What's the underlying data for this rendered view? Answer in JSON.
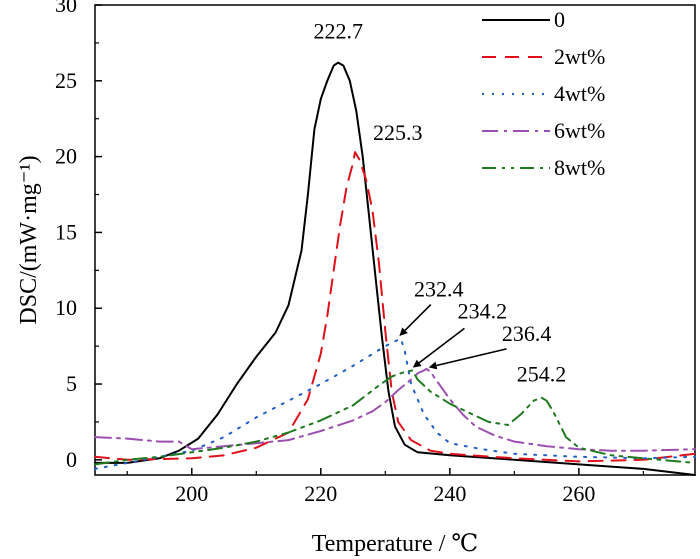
{
  "chart_data": {
    "type": "line",
    "xlabel": "Temperature / ℃",
    "ylabel": "DSC/(mW·mg⁻¹)",
    "xlim": [
      185,
      278
    ],
    "ylim": [
      -1,
      30
    ],
    "xticks": [
      200,
      220,
      240,
      260
    ],
    "yticks": [
      0,
      5,
      10,
      15,
      20,
      25,
      30
    ],
    "grid": false,
    "legend_position": "top-right",
    "series": [
      {
        "name": "0",
        "color": "#000000",
        "dash": "solid",
        "points": [
          [
            185,
            -0.2
          ],
          [
            190,
            -0.2
          ],
          [
            195,
            0.1
          ],
          [
            198,
            0.6
          ],
          [
            201,
            1.4
          ],
          [
            204,
            3.0
          ],
          [
            207,
            5.0
          ],
          [
            210,
            6.8
          ],
          [
            213,
            8.4
          ],
          [
            215,
            10.2
          ],
          [
            217,
            13.8
          ],
          [
            218,
            17.5
          ],
          [
            219,
            21.8
          ],
          [
            220,
            23.8
          ],
          [
            221,
            25.0
          ],
          [
            222,
            26.0
          ],
          [
            222.7,
            26.2
          ],
          [
            223.5,
            26.0
          ],
          [
            224.5,
            25.0
          ],
          [
            225.5,
            23.0
          ],
          [
            226.5,
            20.0
          ],
          [
            227.5,
            16.0
          ],
          [
            228.5,
            12.0
          ],
          [
            229.5,
            8.0
          ],
          [
            230.5,
            4.5
          ],
          [
            231.5,
            2.2
          ],
          [
            233,
            1.0
          ],
          [
            235,
            0.5
          ],
          [
            240,
            0.3
          ],
          [
            250,
            0
          ],
          [
            260,
            -0.3
          ],
          [
            270,
            -0.6
          ],
          [
            278,
            -1.0
          ]
        ]
      },
      {
        "name": "2wt%",
        "color": "#e0101a",
        "dash": "14,9",
        "points": [
          [
            185,
            0.2
          ],
          [
            190,
            0
          ],
          [
            200,
            0.1
          ],
          [
            205,
            0.3
          ],
          [
            210,
            0.8
          ],
          [
            215,
            1.8
          ],
          [
            218,
            4.0
          ],
          [
            220,
            7.0
          ],
          [
            221,
            9.5
          ],
          [
            222,
            12.5
          ],
          [
            223,
            15.5
          ],
          [
            224,
            18.0
          ],
          [
            225,
            19.6
          ],
          [
            225.3,
            20.3
          ],
          [
            226,
            19.8
          ],
          [
            227,
            18.5
          ],
          [
            228,
            16.5
          ],
          [
            229,
            13.0
          ],
          [
            230,
            8.5
          ],
          [
            231,
            4.5
          ],
          [
            232,
            2.5
          ],
          [
            234,
            1.3
          ],
          [
            237,
            0.6
          ],
          [
            240,
            0.4
          ],
          [
            250,
            0.1
          ],
          [
            260,
            -0.1
          ],
          [
            270,
            0
          ],
          [
            278,
            0.4
          ]
        ]
      },
      {
        "name": "4wt%",
        "color": "#1f5fc8",
        "dash": "2,8",
        "points": [
          [
            185,
            -0.6
          ],
          [
            190,
            -0.2
          ],
          [
            195,
            0.2
          ],
          [
            200,
            0.6
          ],
          [
            205,
            1.5
          ],
          [
            210,
            2.8
          ],
          [
            215,
            3.9
          ],
          [
            220,
            5.0
          ],
          [
            225,
            6.2
          ],
          [
            230,
            7.5
          ],
          [
            232.4,
            8.0
          ],
          [
            233,
            7.2
          ],
          [
            234,
            5.0
          ],
          [
            236,
            3.0
          ],
          [
            238,
            1.8
          ],
          [
            240,
            1.1
          ],
          [
            245,
            0.7
          ],
          [
            250,
            0.4
          ],
          [
            260,
            0.2
          ],
          [
            270,
            0.1
          ],
          [
            278,
            0.2
          ]
        ]
      },
      {
        "name": "6wt%",
        "color": "#9b4fb0",
        "dash": "16,6,3,6",
        "points": [
          [
            185,
            1.5
          ],
          [
            190,
            1.4
          ],
          [
            195,
            1.2
          ],
          [
            198,
            1.2
          ],
          [
            200,
            0.7
          ],
          [
            205,
            0.9
          ],
          [
            210,
            1.1
          ],
          [
            215,
            1.3
          ],
          [
            220,
            1.9
          ],
          [
            225,
            2.6
          ],
          [
            228,
            3.2
          ],
          [
            230,
            3.8
          ],
          [
            232,
            4.6
          ],
          [
            234,
            5.3
          ],
          [
            235,
            5.7
          ],
          [
            236,
            5.9
          ],
          [
            236.4,
            6.0
          ],
          [
            237,
            5.8
          ],
          [
            238,
            5.2
          ],
          [
            240,
            4.0
          ],
          [
            242,
            3.0
          ],
          [
            244,
            2.2
          ],
          [
            247,
            1.6
          ],
          [
            250,
            1.2
          ],
          [
            255,
            0.9
          ],
          [
            260,
            0.7
          ],
          [
            265,
            0.6
          ],
          [
            270,
            0.6
          ],
          [
            278,
            0.7
          ]
        ]
      },
      {
        "name": "8wt%",
        "color": "#1f7a1f",
        "dash": "14,6,3,6,3,6",
        "points": [
          [
            185,
            -0.3
          ],
          [
            190,
            0
          ],
          [
            195,
            0.2
          ],
          [
            200,
            0.5
          ],
          [
            205,
            0.8
          ],
          [
            210,
            1.2
          ],
          [
            215,
            1.8
          ],
          [
            220,
            2.6
          ],
          [
            225,
            3.6
          ],
          [
            229,
            4.9
          ],
          [
            231,
            5.5
          ],
          [
            233,
            5.8
          ],
          [
            234.2,
            5.9
          ],
          [
            235,
            5.3
          ],
          [
            237,
            4.5
          ],
          [
            240,
            3.7
          ],
          [
            243,
            3.1
          ],
          [
            246,
            2.5
          ],
          [
            249,
            2.3
          ],
          [
            251,
            3.0
          ],
          [
            253,
            3.9
          ],
          [
            254.2,
            4.1
          ],
          [
            255,
            3.9
          ],
          [
            256,
            3.2
          ],
          [
            258,
            1.5
          ],
          [
            260,
            0.8
          ],
          [
            265,
            0.3
          ],
          [
            270,
            0.1
          ],
          [
            278,
            -0.2
          ]
        ]
      }
    ],
    "annotations": [
      {
        "text": "222.7",
        "x": 222.7,
        "y": 26.2
      },
      {
        "text": "225.3",
        "x": 225.3,
        "y": 20.3
      },
      {
        "text": "232.4",
        "x": 232.4,
        "y": 8.0
      },
      {
        "text": "234.2",
        "x": 234.2,
        "y": 5.9
      },
      {
        "text": "236.4",
        "x": 236.4,
        "y": 6.0
      },
      {
        "text": "254.2",
        "x": 254.2,
        "y": 4.1
      }
    ]
  }
}
